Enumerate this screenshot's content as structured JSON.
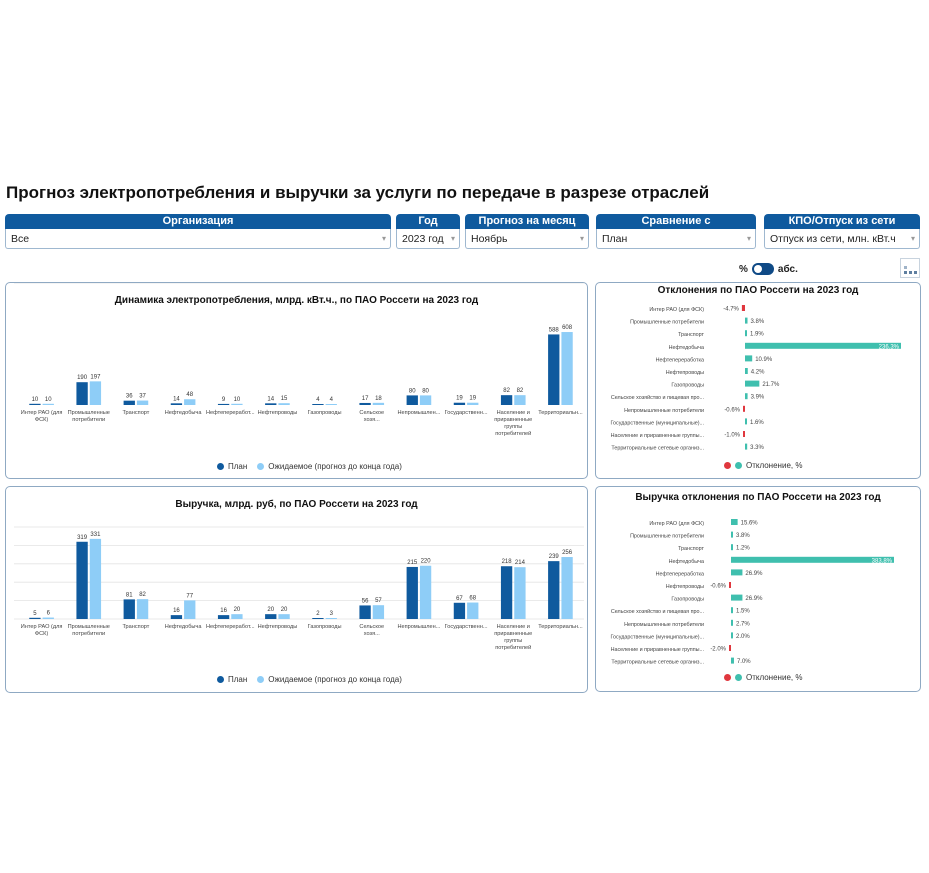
{
  "page": {
    "title": "Прогноз электропотребления и выручки за услуги по передаче в разрезе отраслей"
  },
  "filters": [
    {
      "header": "Организация",
      "value": "Все"
    },
    {
      "header": "Год",
      "value": "2023 год"
    },
    {
      "header": "Прогноз на месяц",
      "value": "Ноябрь"
    },
    {
      "header": "Сравнение с",
      "value": "План"
    },
    {
      "header": "КПО/Отпуск из сети",
      "value": "Отпуск из сети, млн. кВт.ч"
    }
  ],
  "toggle": {
    "left": "%",
    "right": "абс."
  },
  "colors": {
    "plan": "#0f5a9e",
    "expected": "#8ecdf7",
    "pos": "#3fbfae",
    "neg": "#e0373e",
    "filter_header": "#0f5a9e"
  },
  "legend_bars": {
    "plan": "План",
    "expected": "Ожидаемое (прогноз до конца года)"
  },
  "legend_dev": {
    "label": "Отклонение, %"
  },
  "chart_data": [
    {
      "type": "bar",
      "title": "Динамика электропотребления, млрд. кВт.ч., по ПАО Россети на 2023 год",
      "categories": [
        "Интер РАО (для ФСК)",
        "Промышленные потребители",
        "Транспорт",
        "Нефтедобыча",
        "Нефтепереработ...",
        "Нефтепроводы",
        "Газопроводы",
        "Сельское хозя...",
        "Непромышлен...",
        "Государственн...",
        "Население и приравненные группы потребителей",
        "Территориальн..."
      ],
      "series": [
        {
          "name": "План",
          "values": [
            10,
            190,
            36,
            14,
            9,
            14,
            4,
            17,
            80,
            19,
            82,
            588
          ]
        },
        {
          "name": "Ожидаемое (прогноз до конца года)",
          "values": [
            10,
            197,
            37,
            48,
            10,
            15,
            4,
            18,
            80,
            19,
            82,
            608
          ]
        }
      ],
      "ylim": [
        0,
        650
      ]
    },
    {
      "type": "bar",
      "title": "Выручка, млрд. руб, по ПАО Россети на 2023 год",
      "categories": [
        "Интер РАО (для ФСК)",
        "Промышленные потребители",
        "Транспорт",
        "Нефтедобыча",
        "Нефтепереработ...",
        "Нефтепроводы",
        "Газопроводы",
        "Сельское хозя...",
        "Непромышлен...",
        "Государственн...",
        "Население и приравненные группы потребителей",
        "Территориальн..."
      ],
      "series": [
        {
          "name": "План",
          "values": [
            5,
            319,
            81,
            16,
            16,
            20,
            2,
            56,
            215,
            67,
            218,
            239
          ]
        },
        {
          "name": "Ожидаемое (прогноз до конца года)",
          "values": [
            6,
            331,
            82,
            77,
            20,
            20,
            3,
            57,
            220,
            68,
            214,
            256
          ]
        }
      ],
      "ylim": [
        0,
        380
      ]
    },
    {
      "type": "bar",
      "orientation": "horizontal",
      "title": "Отклонения по ПАО Россети на 2023 год",
      "categories": [
        "Интер РАО (для ФСК)",
        "Промышленные потребители",
        "Транспорт",
        "Нефтедобыча",
        "Нефтепереработка",
        "Нефтепроводы",
        "Газопроводы",
        "Сельское хозяйство и пищевая про...",
        "Непромышленные потребители",
        "Государственные (муниципальные)...",
        "Население и приравненные группы...",
        "Территориальные сетевые организ..."
      ],
      "values": [
        -4.7,
        3.8,
        1.9,
        236.3,
        10.9,
        4.2,
        21.7,
        3.9,
        -0.6,
        1.6,
        -1.0,
        3.3
      ],
      "labels": [
        "-4.7%",
        "3.8%",
        "1.9%",
        "236.3%",
        "10.9%",
        "4.2%",
        "21.7%",
        "3.9%",
        "-0.6%",
        "1.6%",
        "-1.0%",
        "3.3%"
      ]
    },
    {
      "type": "bar",
      "orientation": "horizontal",
      "title": "Выручка отклонения по ПАО Россети на 2023 год",
      "categories": [
        "Интер РАО (для ФСК)",
        "Промышленные потребители",
        "Транспорт",
        "Нефтедобыча",
        "Нефтепереработка",
        "Нефтепроводы",
        "Газопроводы",
        "Сельское хозяйство и пищевая про...",
        "Непромышленные потребители",
        "Государственные (муниципальные)...",
        "Население и приравненные группы...",
        "Территориальные сетевые организ..."
      ],
      "values": [
        15.6,
        3.8,
        1.2,
        383.8,
        26.9,
        -0.6,
        26.9,
        1.5,
        2.7,
        2.0,
        -2.0,
        7.0
      ],
      "labels": [
        "15.6%",
        "3.8%",
        "1.2%",
        "383.8%",
        "26.9%",
        "-0.6%",
        "26.9%",
        "1.5%",
        "2.7%",
        "2.0%",
        "-2.0%",
        "7.0%"
      ]
    }
  ]
}
